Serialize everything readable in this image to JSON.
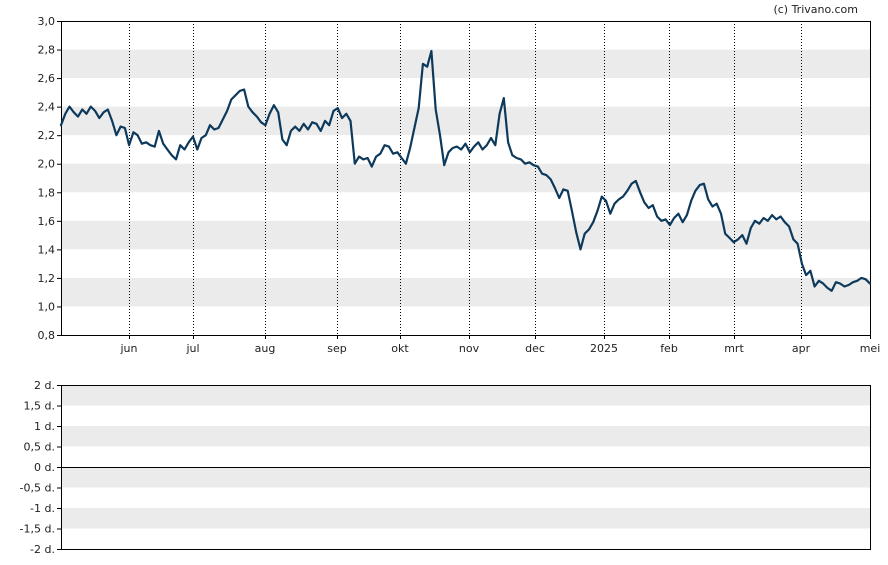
{
  "credit": "(c) Trivano.com",
  "chart_data": [
    {
      "type": "line",
      "title": "",
      "xlabel": "",
      "ylabel": "",
      "ylim": [
        0.8,
        3.0
      ],
      "yticks": [
        "3,0",
        "2,8",
        "2,6",
        "2,4",
        "2,2",
        "2,0",
        "1,8",
        "1,6",
        "1,4",
        "1,2",
        "1,0",
        "0,8"
      ],
      "xticks": [
        "jun",
        "jul",
        "aug",
        "sep",
        "okt",
        "nov",
        "dec",
        "2025",
        "feb",
        "mrt",
        "apr",
        "mei"
      ],
      "line_color": "#0d3a5c",
      "band_color": "#ebebeb",
      "grid": "vertical dotted lines at month ticks, alternating horizontal bands",
      "series": [
        {
          "values": [
            2.27,
            2.35,
            2.4,
            2.36,
            2.33,
            2.38,
            2.35,
            2.4,
            2.37,
            2.32,
            2.36,
            2.38,
            2.3,
            2.2,
            2.26,
            2.25,
            2.13,
            2.22,
            2.2,
            2.14,
            2.15,
            2.13,
            2.12,
            2.23,
            2.14,
            2.1,
            2.06,
            2.03,
            2.13,
            2.1,
            2.15,
            2.19,
            2.1,
            2.18,
            2.2,
            2.27,
            2.24,
            2.25,
            2.31,
            2.37,
            2.45,
            2.48,
            2.51,
            2.52,
            2.4,
            2.36,
            2.33,
            2.29,
            2.27,
            2.35,
            2.41,
            2.36,
            2.17,
            2.13,
            2.23,
            2.26,
            2.23,
            2.28,
            2.24,
            2.29,
            2.28,
            2.23,
            2.3,
            2.27,
            2.37,
            2.39,
            2.32,
            2.35,
            2.3,
            2.0,
            2.05,
            2.03,
            2.04,
            1.98,
            2.05,
            2.07,
            2.13,
            2.12,
            2.07,
            2.08,
            2.04,
            2.0,
            2.11,
            2.25,
            2.39,
            2.7,
            2.68,
            2.79,
            2.38,
            2.2,
            1.99,
            2.08,
            2.11,
            2.12,
            2.1,
            2.14,
            2.08,
            2.12,
            2.15,
            2.1,
            2.13,
            2.18,
            2.13,
            2.35,
            2.46,
            2.15,
            2.06,
            2.04,
            2.03,
            2.0,
            2.01,
            1.99,
            1.98,
            1.93,
            1.92,
            1.89,
            1.83,
            1.76,
            1.82,
            1.81,
            1.67,
            1.52,
            1.4,
            1.51,
            1.54,
            1.59,
            1.67,
            1.77,
            1.74,
            1.65,
            1.72,
            1.75,
            1.77,
            1.81,
            1.86,
            1.88,
            1.8,
            1.73,
            1.69,
            1.71,
            1.63,
            1.6,
            1.61,
            1.57,
            1.62,
            1.65,
            1.59,
            1.64,
            1.74,
            1.81,
            1.85,
            1.86,
            1.75,
            1.7,
            1.72,
            1.65,
            1.51,
            1.48,
            1.45,
            1.47,
            1.5,
            1.44,
            1.55,
            1.6,
            1.58,
            1.62,
            1.6,
            1.64,
            1.61,
            1.63,
            1.59,
            1.56,
            1.47,
            1.44,
            1.3,
            1.22,
            1.25,
            1.14,
            1.18,
            1.16,
            1.13,
            1.11,
            1.17,
            1.16,
            1.14,
            1.15,
            1.17,
            1.18,
            1.2,
            1.19,
            1.16
          ]
        }
      ]
    },
    {
      "type": "line",
      "title": "",
      "xlabel": "",
      "ylabel": "",
      "ylim": [
        -2,
        2
      ],
      "yticks": [
        "2 d.",
        "1,5 d.",
        "1 d.",
        "0,5 d.",
        "0 d.",
        "-0,5 d.",
        "-1 d.",
        "-1,5 d.",
        "-2 d."
      ],
      "band_color": "#ebebeb",
      "grid": "alternating horizontal bands, zero line",
      "series": []
    }
  ]
}
